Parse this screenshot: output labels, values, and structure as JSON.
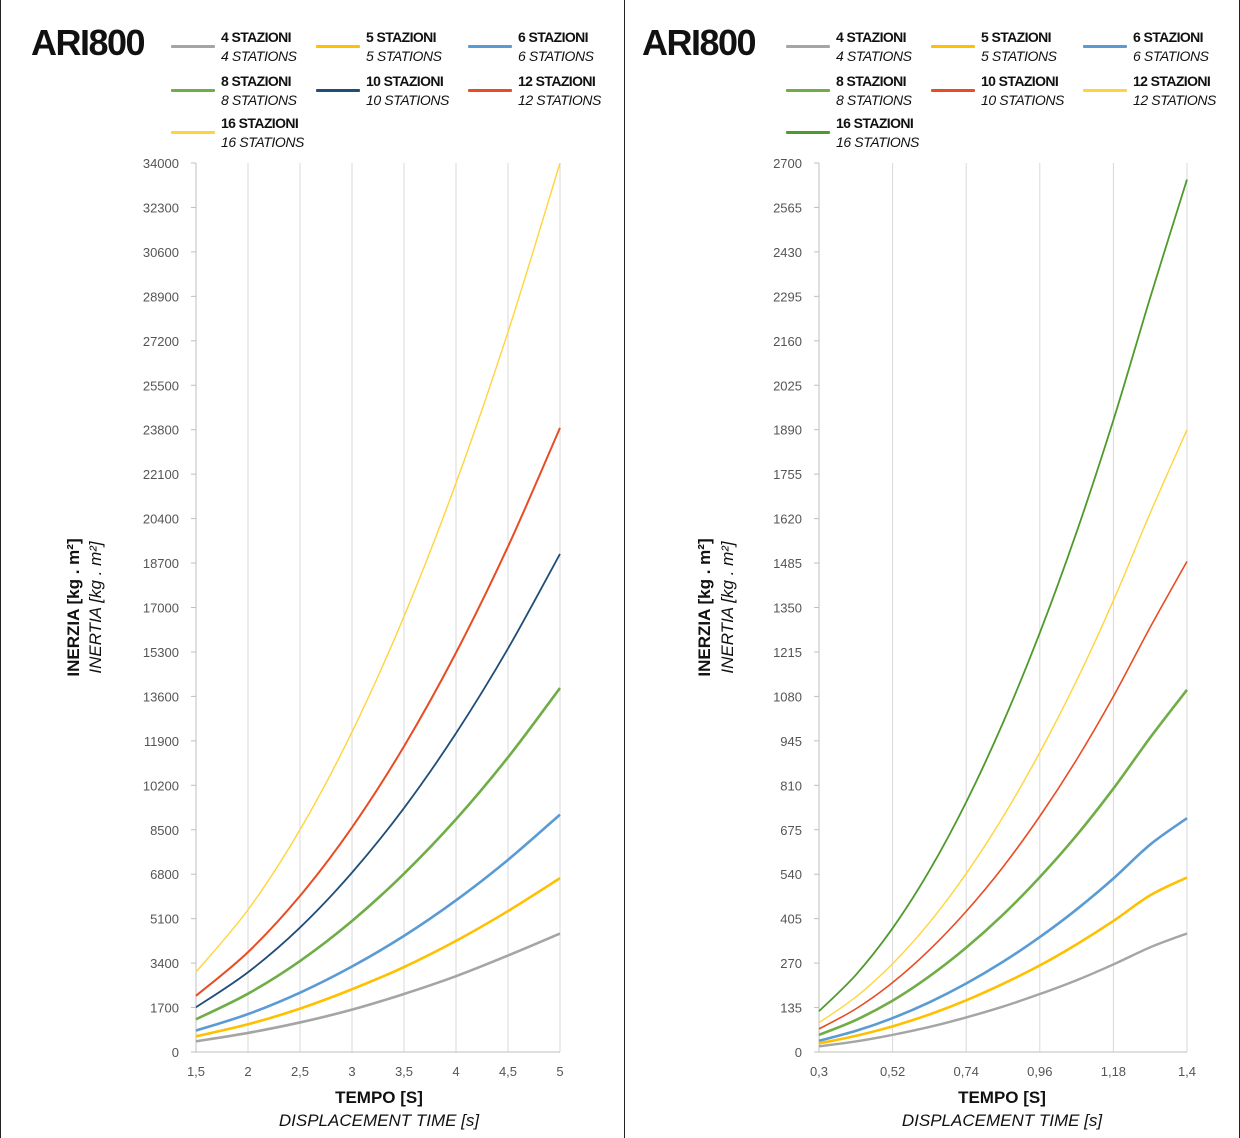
{
  "chart_data": [
    {
      "type": "line",
      "brand": "ARI800",
      "xlabel": "TEMPO [S]",
      "xlabel_en": "DISPLACEMENT TIME [s]",
      "ylabel": "INERZIA [kg . m²]",
      "ylabel_en": "INERTIA [kg . m²]",
      "xlim": [
        1.5,
        5
      ],
      "ylim": [
        0,
        34000
      ],
      "x_ticks": [
        1.5,
        2,
        2.5,
        3,
        3.5,
        4,
        4.5,
        5
      ],
      "x_tick_labels": [
        "1,5",
        "2",
        "2,5",
        "3",
        "3,5",
        "4",
        "4,5",
        "5"
      ],
      "y_ticks": [
        0,
        1700,
        3400,
        5100,
        6800,
        8500,
        10200,
        11900,
        13600,
        15300,
        17000,
        18700,
        20400,
        22100,
        23800,
        25500,
        27200,
        28900,
        30600,
        32300,
        34000
      ],
      "grid": true,
      "legend_position": "top",
      "x": [
        1.5,
        2,
        2.5,
        3,
        3.5,
        4,
        4.5,
        5
      ],
      "series": [
        {
          "name": "4 STAZIONI",
          "name_en": "4 STATIONS",
          "color": "#a5a5a5",
          "values": [
            410,
            730,
            1130,
            1620,
            2220,
            2900,
            3690,
            4530
          ]
        },
        {
          "name": "5 STAZIONI",
          "name_en": "5 STATIONS",
          "color": "#ffc000",
          "values": [
            600,
            1060,
            1660,
            2400,
            3250,
            4250,
            5390,
            6650
          ]
        },
        {
          "name": "6 STAZIONI",
          "name_en": "6 STATIONS",
          "color": "#5b9bd5",
          "values": [
            820,
            1450,
            2270,
            3270,
            4440,
            5800,
            7350,
            9080
          ]
        },
        {
          "name": "8 STAZIONI",
          "name_en": "8 STATIONS",
          "color": "#70ad47",
          "values": [
            1250,
            2230,
            3480,
            5010,
            6820,
            8900,
            11270,
            13920
          ]
        },
        {
          "name": "10 STAZIONI",
          "name_en": "10 STATIONS",
          "color": "#1f4e79",
          "values": [
            1710,
            3050,
            4760,
            6860,
            9330,
            12190,
            15430,
            19050
          ]
        },
        {
          "name": "12 STAZIONI",
          "name_en": "12 STATIONS",
          "color": "#e84c22",
          "values": [
            2150,
            3820,
            5970,
            8590,
            11690,
            15270,
            19330,
            23870
          ]
        },
        {
          "name": "16 STAZIONI",
          "name_en": "16 STATIONS",
          "color": "#ffd43b",
          "values": [
            3060,
            5440,
            8500,
            12240,
            16660,
            21760,
            27540,
            34000
          ]
        }
      ]
    },
    {
      "type": "line",
      "brand": "ARI800",
      "xlabel": "TEMPO [S]",
      "xlabel_en": "DISPLACEMENT TIME [s]",
      "ylabel": "INERZIA [kg . m²]",
      "ylabel_en": "INERTIA [kg . m²]",
      "xlim": [
        0.3,
        1.4
      ],
      "ylim": [
        0,
        2700
      ],
      "x_ticks": [
        0.3,
        0.52,
        0.74,
        0.96,
        1.18,
        1.4
      ],
      "x_tick_labels": [
        "0,3",
        "0,52",
        "0,74",
        "0,96",
        "1,18",
        "1,4"
      ],
      "y_ticks": [
        0,
        135,
        270,
        405,
        540,
        675,
        810,
        945,
        1080,
        1215,
        1350,
        1485,
        1620,
        1755,
        1890,
        2025,
        2160,
        2295,
        2430,
        2565,
        2700
      ],
      "grid": true,
      "legend_position": "top",
      "x": [
        0.3,
        0.41,
        0.52,
        0.63,
        0.74,
        0.85,
        0.96,
        1.07,
        1.18,
        1.29,
        1.4
      ],
      "series": [
        {
          "name": "4 STAZIONI",
          "name_en": "4 STATIONS",
          "color": "#a5a5a5",
          "values": [
            17,
            32,
            52,
            76,
            105,
            138,
            176,
            218,
            266,
            318,
            360
          ]
        },
        {
          "name": "5 STAZIONI",
          "name_en": "5 STATIONS",
          "color": "#ffc000",
          "values": [
            26,
            49,
            78,
            114,
            157,
            207,
            263,
            327,
            398,
            476,
            530
          ]
        },
        {
          "name": "6 STAZIONI",
          "name_en": "6 STATIONS",
          "color": "#5b9bd5",
          "values": [
            34,
            64,
            103,
            151,
            208,
            274,
            349,
            433,
            527,
            630,
            710
          ]
        },
        {
          "name": "8 STAZIONI",
          "name_en": "8 STATIONS",
          "color": "#70ad47",
          "values": [
            52,
            97,
            156,
            230,
            317,
            417,
            531,
            658,
            800,
            955,
            1100
          ]
        },
        {
          "name": "10 STAZIONI",
          "name_en": "10 STATIONS",
          "color": "#e84c22",
          "values": [
            70,
            131,
            211,
            310,
            427,
            562,
            716,
            888,
            1080,
            1290,
            1490
          ]
        },
        {
          "name": "12 STAZIONI",
          "name_en": "12 STATIONS",
          "color": "#ffd43b",
          "values": [
            89,
            167,
            268,
            393,
            542,
            714,
            910,
            1128,
            1371,
            1637,
            1890
          ]
        },
        {
          "name": "16 STAZIONI",
          "name_en": "16 STATIONS",
          "color": "#4e9a2b",
          "values": [
            124,
            234,
            376,
            551,
            759,
            1000,
            1273,
            1579,
            1919,
            2291,
            2650
          ]
        }
      ]
    }
  ]
}
